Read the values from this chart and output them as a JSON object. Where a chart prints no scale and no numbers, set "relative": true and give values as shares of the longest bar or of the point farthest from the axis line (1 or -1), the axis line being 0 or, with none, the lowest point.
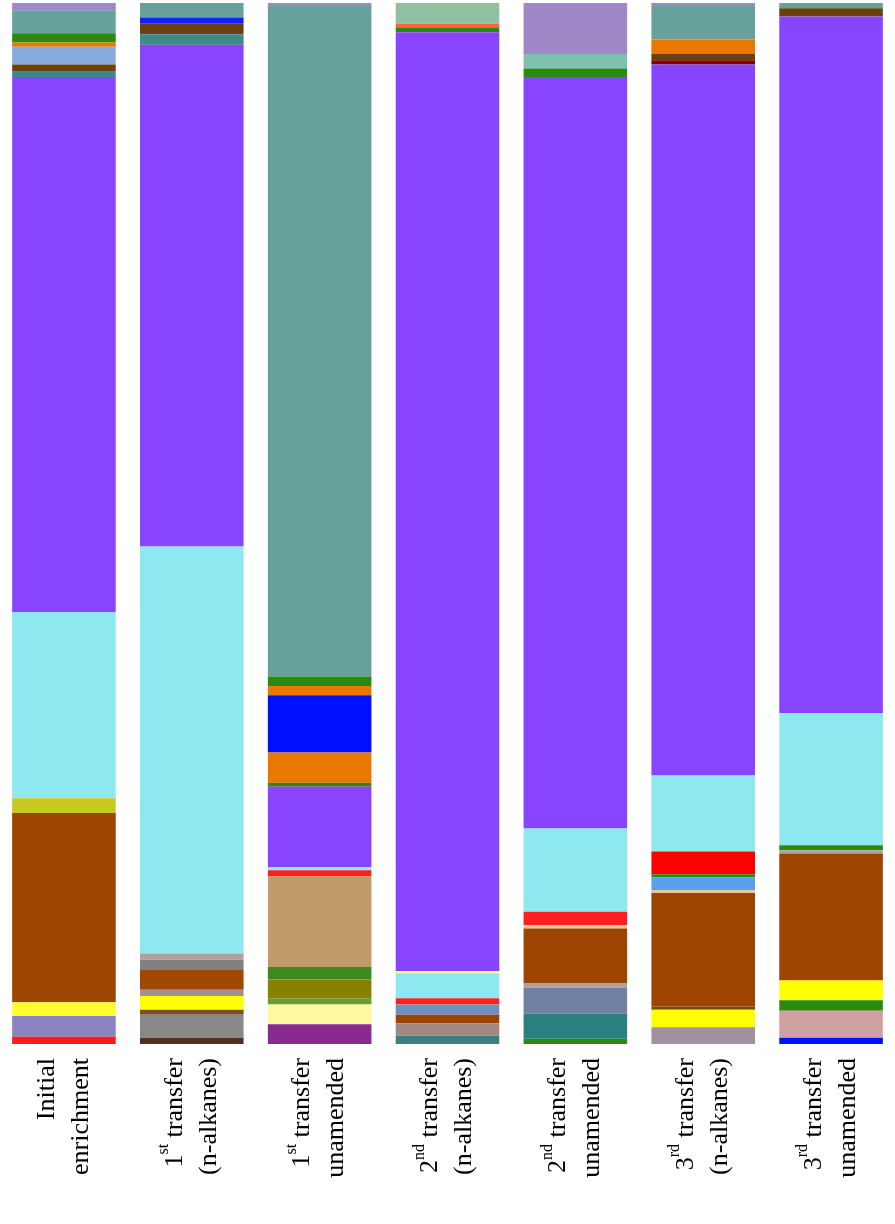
{
  "chart_data": {
    "type": "bar",
    "stacked": true,
    "relative": true,
    "legend": false,
    "categories": [
      "Initial\nenrichment",
      "1$^{st}$ transfer\n(n-alkanes)",
      "1$^{st}$ transfer\nunamended",
      "2$^{nd}$ transfer\n(n-alkanes)",
      "2$^{nd}$ transfer\nunamended",
      "3$^{rd}$ transfer\n(n-alkanes)",
      "3$^{rd}$ transfer\nunamended"
    ],
    "series": [
      {
        "values": [
          0.007,
          0.006,
          0.019,
          0.008,
          0.005,
          0.016,
          0.006
        ],
        "colors": [
          "#ff1a1a",
          "#503020",
          "#882a90",
          "#3a8080",
          "#2a8a10",
          "#a090a0",
          "#0010ff"
        ]
      },
      {
        "values": [
          0.02,
          0.022,
          0.019,
          0.012,
          0.024,
          0.017,
          0.026
        ],
        "colors": [
          "#8a84c0",
          "#888888",
          "#fff8a0",
          "#a08880",
          "#2a8080",
          "#ffff00",
          "#d0a0a0"
        ]
      },
      {
        "values": [
          0.013,
          0.005,
          0.006,
          0.008,
          0.025,
          0.003,
          0.01
        ],
        "colors": [
          "#ffff30",
          "#7a5030",
          "#6a9a30",
          "#9c4400",
          "#7080a0",
          "#7a4a10",
          "#2a8a10"
        ]
      },
      {
        "values": [
          0.182,
          0.013,
          0.018,
          0.01,
          0.004,
          0.109,
          0.019
        ],
        "colors": [
          "#9c4400",
          "#ffff00",
          "#8a8000",
          "#7090c0",
          "#b0a0a0",
          "#9c4400",
          "#ffff00"
        ]
      },
      {
        "values": [
          0.014,
          0.006,
          0.012,
          0.006,
          0.053,
          0.003,
          0.122
        ],
        "colors": [
          "#c8c820",
          "#a09090",
          "#3a8a20",
          "#ff2020",
          "#9c4400",
          "#f0c0a0",
          "#9c4400"
        ]
      },
      {
        "values": [
          0.179,
          0.019,
          0.087,
          0.024,
          0.003,
          0.012,
          0.003
        ],
        "colors": [
          "#8ee8f0",
          "#a04800",
          "#c09a68",
          "#8ee8f0",
          "#f0c0a0",
          "#5aa0f0",
          "#b0a0a0"
        ]
      },
      {
        "values": [
          0.514,
          0.01,
          0.006,
          0.002,
          0.013,
          0.003,
          0.005
        ],
        "colors": [
          "#8844ff",
          "#808080",
          "#ff2020",
          "#ffff80",
          "#ff2020",
          "#2a8a10",
          "#2a8a10"
        ]
      },
      {
        "values": [
          0.005,
          0.006,
          0.003,
          0.902,
          0.08,
          0.022,
          0.127
        ],
        "colors": [
          "#3a8a8a",
          "#b0a0a0",
          "#8ee8f0",
          "#8844ff",
          "#8ee8f0",
          "#ff0000",
          "#8ee8f0"
        ]
      },
      {
        "values": [
          0.007,
          0.391,
          0.077,
          0.004,
          0.722,
          0.073,
          0.669
        ],
        "colors": [
          "#6a4010",
          "#8ee8f0",
          "#8844ff",
          "#2a8a10",
          "#8844ff",
          "#8ee8f0",
          "#8844ff"
        ]
      },
      {
        "values": [
          0.017,
          0.482,
          0.004,
          0.004,
          0.008,
          0.683,
          0.008
        ],
        "colors": [
          "#88aadd",
          "#8844ff",
          "#4a7a20",
          "#ff6040",
          "#2a8a10",
          "#8844ff",
          "#6a4010"
        ]
      },
      {
        "values": [
          0.004,
          0.01,
          0.029,
          0.02,
          0.014,
          0.004,
          0.005
        ],
        "colors": [
          "#e87800",
          "#3a8a8a",
          "#e87800",
          "#90c0a0",
          "#80c0b0",
          "#800000",
          "#66a19c"
        ]
      },
      {
        "values": [
          0.009,
          0.01,
          0.055,
          null,
          0.049,
          0.006,
          null
        ],
        "colors": [
          "#2a8a10",
          "#6a4010",
          "#0010ff",
          null,
          "#a088c8",
          "#6a4010",
          null
        ]
      },
      {
        "values": [
          0.022,
          0.006,
          0.009,
          null,
          null,
          0.014,
          null
        ],
        "colors": [
          "#66a19c",
          "#1020ff",
          "#e87800",
          null,
          null,
          "#e87800",
          null
        ]
      },
      {
        "values": [
          0.007,
          0.014,
          0.009,
          null,
          null,
          0.032,
          null
        ],
        "colors": [
          "#a088c8",
          "#66a19c",
          "#2a8a10",
          null,
          null,
          "#66a19c",
          null
        ]
      },
      {
        "values": [
          null,
          null,
          0.644,
          null,
          null,
          0.003,
          null
        ],
        "colors": [
          null,
          null,
          "#66a19c",
          null,
          null,
          "#a088c8",
          null
        ]
      },
      {
        "values": [
          null,
          null,
          0.003,
          null,
          null,
          null,
          null
        ],
        "colors": [
          null,
          null,
          "#a088c8",
          null,
          null,
          null,
          null
        ]
      }
    ]
  }
}
